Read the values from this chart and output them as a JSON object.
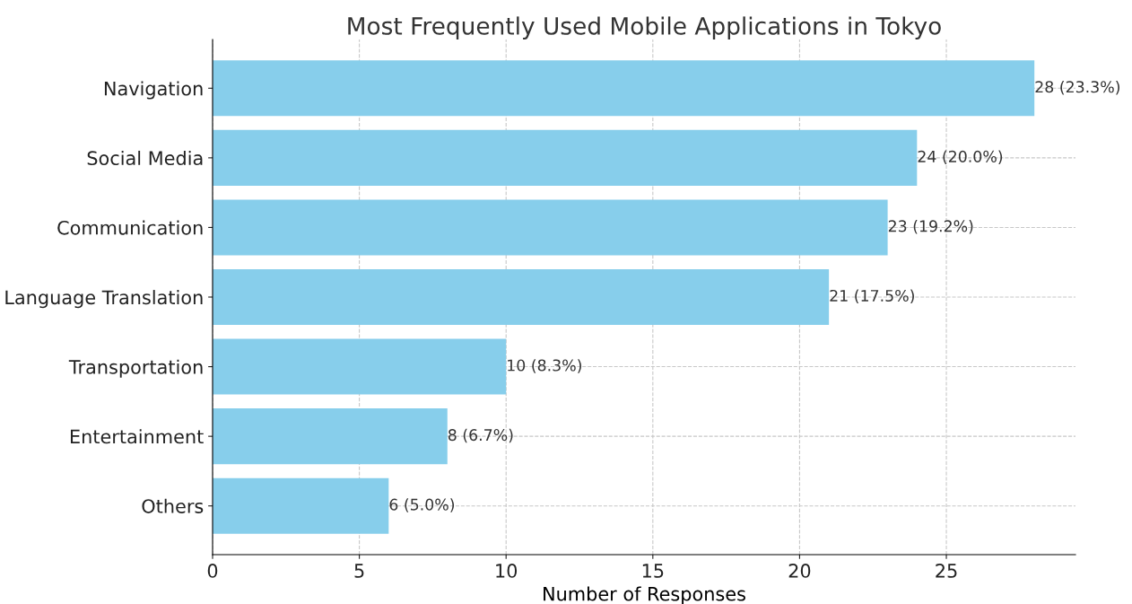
{
  "chart_data": {
    "type": "bar",
    "orientation": "horizontal",
    "title": "Most Frequently Used Mobile Applications in Tokyo",
    "xlabel": "Number of Responses",
    "categories": [
      "Navigation",
      "Social Media",
      "Communication",
      "Language Translation",
      "Transportation",
      "Entertainment",
      "Others"
    ],
    "values": [
      28,
      24,
      23,
      21,
      10,
      8,
      6
    ],
    "value_labels": [
      "28 (23.3%)",
      "24 (20.0%)",
      "23 (19.2%)",
      "21 (17.5%)",
      "10 (8.3%)",
      "8 (6.7%)",
      "6 (5.0%)"
    ],
    "color": "#87ceeb",
    "xlim": [
      0,
      29.4
    ],
    "xticks": [
      0,
      5,
      10,
      15,
      20,
      25
    ],
    "grid": true,
    "line_style": "dashed"
  }
}
